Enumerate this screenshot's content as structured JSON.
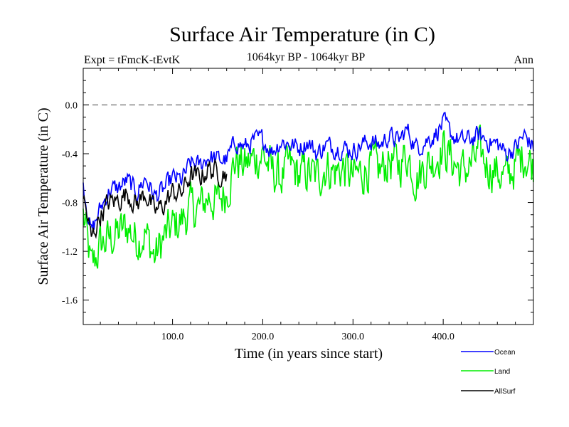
{
  "chart_data": {
    "type": "line",
    "title": "Surface Air Temperature (in C)",
    "subtitle": "1064kyr BP - 1064kyr BP",
    "experiment_label": "Expt = tFmcK-tEvtK",
    "season_label": "Ann",
    "xlabel": "Time (in years since start)",
    "ylabel": "Surface Air Temperature (in C)",
    "xlim": [
      1,
      500
    ],
    "ylim": [
      -1.8,
      0.3
    ],
    "x_ticks": [
      100,
      200,
      300,
      400
    ],
    "x_tick_labels": [
      "100.0",
      "200.0",
      "300.0",
      "400.0"
    ],
    "y_ticks": [
      -1.6,
      -1.2,
      -0.8,
      -0.4,
      0.0
    ],
    "y_tick_labels": [
      "-1.6",
      "-1.2",
      "-0.8",
      "-0.4",
      "0.0"
    ],
    "reference_line": 0.0,
    "legend_position": "bottom-right",
    "series": [
      {
        "name": "Ocean",
        "color": "#0000ff",
        "x": [
          1,
          10,
          20,
          30,
          40,
          50,
          60,
          70,
          80,
          90,
          100,
          110,
          120,
          130,
          140,
          150,
          160,
          170,
          180,
          190,
          200,
          210,
          220,
          230,
          240,
          250,
          260,
          270,
          280,
          290,
          300,
          310,
          320,
          330,
          340,
          350,
          360,
          370,
          380,
          390,
          400,
          410,
          420,
          430,
          440,
          450,
          460,
          470,
          480,
          490,
          500
        ],
        "values": [
          -0.65,
          -1.05,
          -0.85,
          -0.7,
          -0.68,
          -0.62,
          -0.72,
          -0.6,
          -0.75,
          -0.7,
          -0.6,
          -0.62,
          -0.48,
          -0.5,
          -0.42,
          -0.45,
          -0.45,
          -0.3,
          -0.35,
          -0.3,
          -0.28,
          -0.38,
          -0.3,
          -0.32,
          -0.35,
          -0.3,
          -0.4,
          -0.33,
          -0.35,
          -0.35,
          -0.38,
          -0.32,
          -0.3,
          -0.33,
          -0.25,
          -0.3,
          -0.2,
          -0.35,
          -0.3,
          -0.25,
          -0.15,
          -0.25,
          -0.3,
          -0.28,
          -0.25,
          -0.3,
          -0.32,
          -0.4,
          -0.35,
          -0.25,
          -0.35
        ]
      },
      {
        "name": "Land",
        "color": "#00ee00",
        "x": [
          1,
          10,
          20,
          30,
          40,
          50,
          60,
          70,
          80,
          90,
          100,
          110,
          120,
          130,
          140,
          150,
          160,
          170,
          180,
          190,
          200,
          210,
          220,
          230,
          240,
          250,
          260,
          270,
          280,
          290,
          300,
          310,
          320,
          330,
          340,
          350,
          360,
          370,
          380,
          390,
          400,
          410,
          420,
          430,
          440,
          450,
          460,
          470,
          480,
          490,
          500
        ],
        "values": [
          -0.9,
          -1.35,
          -1.15,
          -1.1,
          -1.05,
          -1.0,
          -1.1,
          -1.05,
          -1.25,
          -1.1,
          -1.0,
          -0.95,
          -0.85,
          -0.85,
          -0.75,
          -0.8,
          -0.7,
          -0.45,
          -0.5,
          -0.45,
          -0.4,
          -0.55,
          -0.6,
          -0.5,
          -0.58,
          -0.55,
          -0.6,
          -0.5,
          -0.55,
          -0.52,
          -0.6,
          -0.55,
          -0.5,
          -0.55,
          -0.45,
          -0.5,
          -0.4,
          -0.6,
          -0.5,
          -0.45,
          -0.35,
          -0.45,
          -0.55,
          -0.5,
          -0.4,
          -0.5,
          -0.55,
          -0.6,
          -0.5,
          -0.4,
          -0.5
        ]
      },
      {
        "name": "AllSurf",
        "color": "#000000",
        "x": [
          1,
          10,
          20,
          30,
          40,
          50,
          60,
          70,
          80,
          90,
          100,
          110,
          120,
          130,
          140,
          150,
          160
        ],
        "values": [
          -0.75,
          -1.1,
          -0.9,
          -0.8,
          -0.78,
          -0.72,
          -0.82,
          -0.72,
          -0.88,
          -0.82,
          -0.72,
          -0.72,
          -0.58,
          -0.6,
          -0.52,
          -0.56,
          -0.55
        ]
      }
    ]
  }
}
